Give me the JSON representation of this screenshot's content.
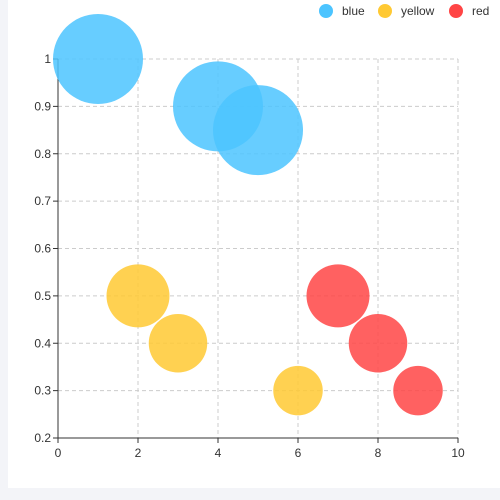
{
  "chart_data": {
    "type": "scatter",
    "subtype": "bubble",
    "title": "",
    "xlabel": "",
    "ylabel": "",
    "xlim": [
      0,
      10
    ],
    "ylim": [
      0.2,
      1
    ],
    "x_ticks": [
      "0",
      "2",
      "4",
      "6",
      "8",
      "10"
    ],
    "y_ticks": [
      "0.2",
      "0.3",
      "0.4",
      "0.5",
      "0.6",
      "0.7",
      "0.8",
      "0.9",
      "1"
    ],
    "grid": true,
    "grid_style": "dashed",
    "legend_position": "top-right",
    "series": [
      {
        "name": "blue",
        "color": "#4cc4ff",
        "points": [
          {
            "x": 1,
            "y": 1,
            "size": 10
          },
          {
            "x": 4,
            "y": 0.9,
            "size": 10
          },
          {
            "x": 5,
            "y": 0.85,
            "size": 10
          }
        ]
      },
      {
        "name": "yellow",
        "color": "#ffc933",
        "points": [
          {
            "x": 2,
            "y": 0.5,
            "size": 7
          },
          {
            "x": 3,
            "y": 0.4,
            "size": 6.5
          },
          {
            "x": 6,
            "y": 0.3,
            "size": 5.5
          }
        ]
      },
      {
        "name": "red",
        "color": "#ff4545",
        "points": [
          {
            "x": 7,
            "y": 0.5,
            "size": 7
          },
          {
            "x": 8,
            "y": 0.4,
            "size": 6.5
          },
          {
            "x": 9,
            "y": 0.3,
            "size": 5.5
          }
        ]
      }
    ]
  }
}
